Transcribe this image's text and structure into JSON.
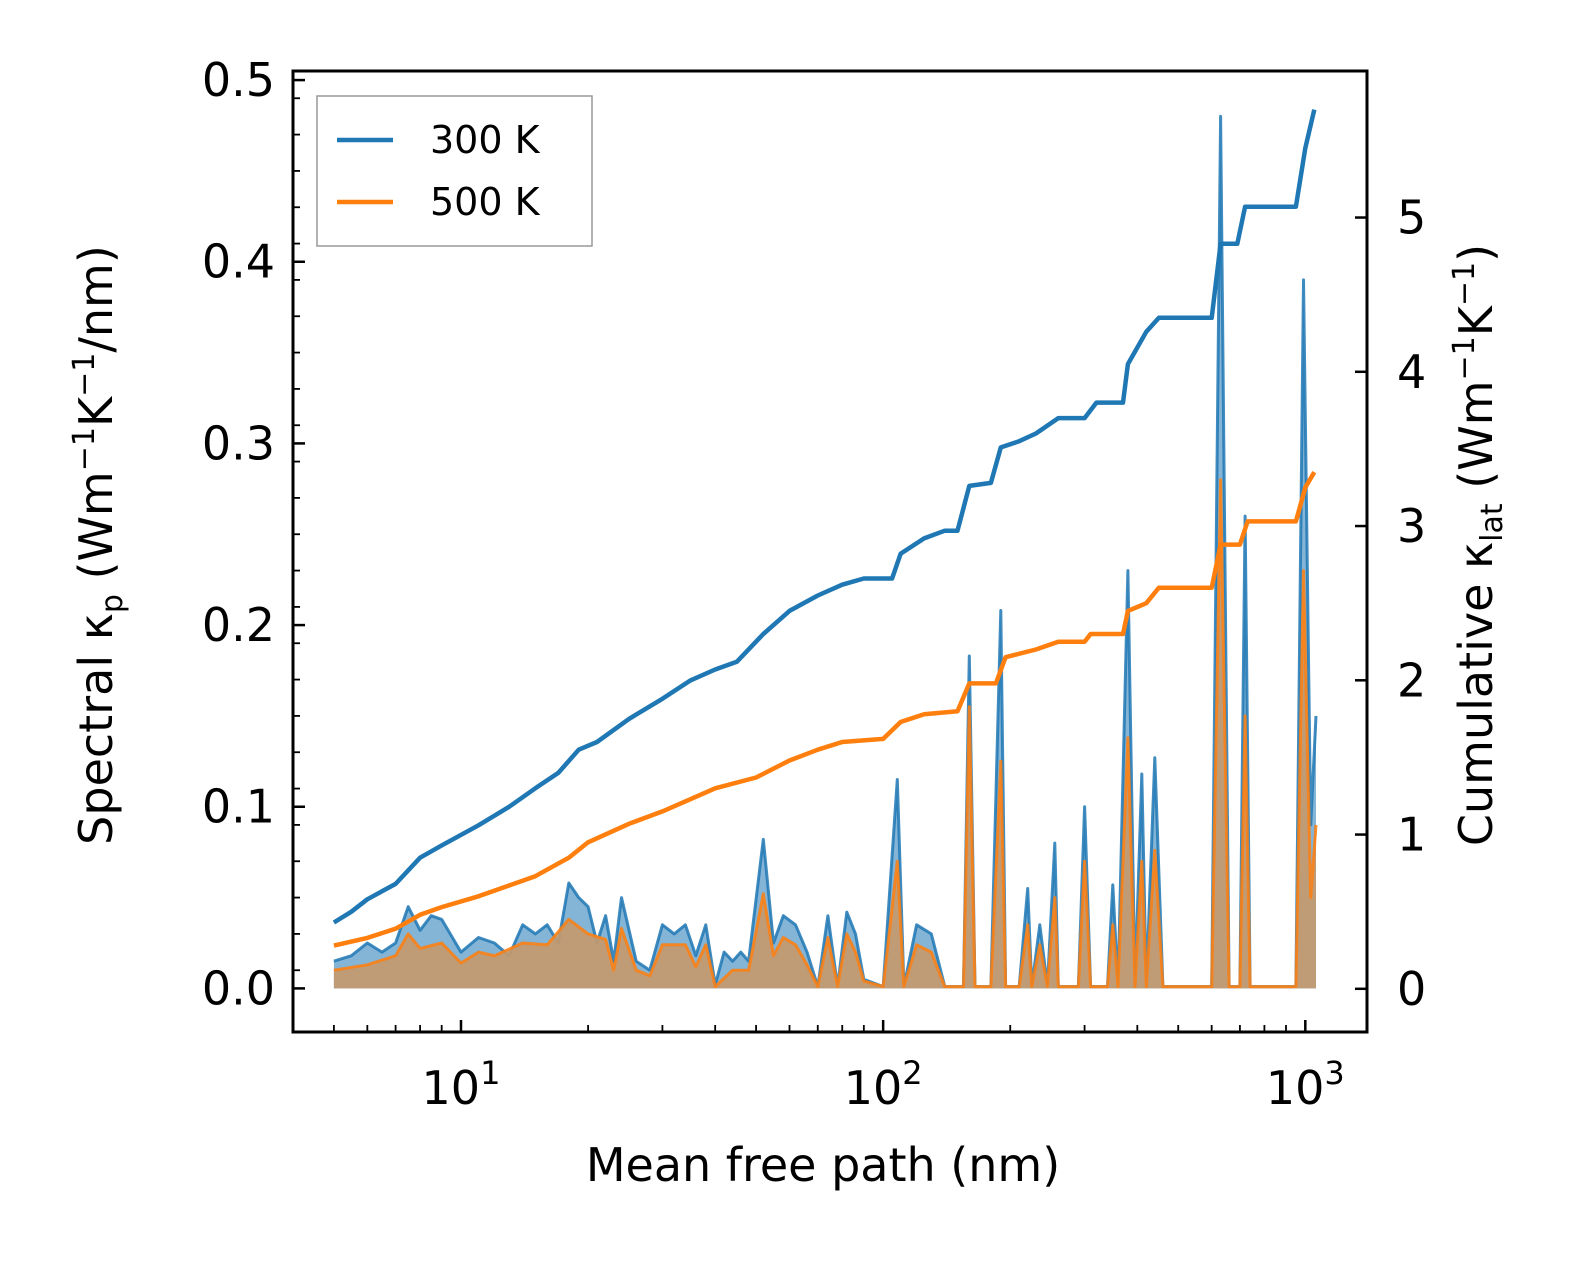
{
  "chart_data": {
    "type": "line",
    "xlabel": "Mean free path (nm)",
    "xscale": "log",
    "xlim": [
      4.0,
      1400
    ],
    "ylabel_left": "Spectral κp (Wm⁻¹K⁻¹/nm)",
    "ylabel_left_parts": {
      "pre": "Spectral κ",
      "sub": "p",
      "post": " (Wm",
      "sup1": "−1",
      "mid": "K",
      "sup2": "−1",
      "end": "/nm)"
    },
    "ylim_left": [
      -0.024,
      0.505
    ],
    "ylabel_right": "Cumulative κlat (Wm⁻¹K⁻¹)",
    "ylabel_right_parts": {
      "pre": "Cumulative κ",
      "sub": "lat",
      "post": " (Wm",
      "sup1": "−1",
      "mid": "K",
      "sup2": "−1",
      "end": ")"
    },
    "ylim_right": [
      -0.28,
      5.95
    ],
    "x_ticks": [
      {
        "value": 10,
        "base": "10",
        "exp": "1"
      },
      {
        "value": 100,
        "base": "10",
        "exp": "2"
      },
      {
        "value": 1000,
        "base": "10",
        "exp": "3"
      }
    ],
    "y_left_ticks": [
      {
        "value": 0.0,
        "label": "0.0"
      },
      {
        "value": 0.1,
        "label": "0.1"
      },
      {
        "value": 0.2,
        "label": "0.2"
      },
      {
        "value": 0.3,
        "label": "0.3"
      },
      {
        "value": 0.4,
        "label": "0.4"
      },
      {
        "value": 0.5,
        "label": "0.5"
      }
    ],
    "y_right_ticks": [
      {
        "value": 0,
        "label": "0"
      },
      {
        "value": 1,
        "label": "1"
      },
      {
        "value": 2,
        "label": "2"
      },
      {
        "value": 3,
        "label": "3"
      },
      {
        "value": 4,
        "label": "4"
      },
      {
        "value": 5,
        "label": "5"
      }
    ],
    "legend": {
      "position": "top-left",
      "entries": [
        {
          "label": "300 K",
          "series": "300K"
        },
        {
          "label": "500 K",
          "series": "500K"
        }
      ]
    },
    "colors": {
      "300K": "#1f77b4",
      "500K": "#ff7f0e",
      "overlap_fill": "#c4996e"
    },
    "cumulative": [
      {
        "name": "300K",
        "axis": "right",
        "points": [
          [
            5,
            0.43
          ],
          [
            5.5,
            0.5
          ],
          [
            6,
            0.58
          ],
          [
            7,
            0.68
          ],
          [
            8,
            0.85
          ],
          [
            9,
            0.93
          ],
          [
            11,
            1.06
          ],
          [
            13,
            1.18
          ],
          [
            15,
            1.3
          ],
          [
            17,
            1.4
          ],
          [
            19,
            1.55
          ],
          [
            21,
            1.6
          ],
          [
            25,
            1.75
          ],
          [
            30,
            1.88
          ],
          [
            35,
            2.0
          ],
          [
            40,
            2.07
          ],
          [
            45,
            2.12
          ],
          [
            52,
            2.3
          ],
          [
            60,
            2.45
          ],
          [
            70,
            2.55
          ],
          [
            80,
            2.62
          ],
          [
            90,
            2.66
          ],
          [
            105,
            2.66
          ],
          [
            110,
            2.82
          ],
          [
            125,
            2.92
          ],
          [
            140,
            2.97
          ],
          [
            150,
            2.97
          ],
          [
            160,
            3.26
          ],
          [
            180,
            3.28
          ],
          [
            190,
            3.51
          ],
          [
            210,
            3.55
          ],
          [
            230,
            3.6
          ],
          [
            260,
            3.7
          ],
          [
            300,
            3.7
          ],
          [
            320,
            3.8
          ],
          [
            370,
            3.8
          ],
          [
            380,
            4.05
          ],
          [
            420,
            4.26
          ],
          [
            450,
            4.35
          ],
          [
            600,
            4.35
          ],
          [
            630,
            4.83
          ],
          [
            690,
            4.83
          ],
          [
            720,
            5.07
          ],
          [
            950,
            5.07
          ],
          [
            1000,
            5.45
          ],
          [
            1050,
            5.7
          ]
        ]
      },
      {
        "name": "500K",
        "axis": "right",
        "points": [
          [
            5,
            0.28
          ],
          [
            6,
            0.33
          ],
          [
            7,
            0.39
          ],
          [
            8,
            0.48
          ],
          [
            9,
            0.53
          ],
          [
            11,
            0.6
          ],
          [
            13,
            0.67
          ],
          [
            15,
            0.73
          ],
          [
            18,
            0.85
          ],
          [
            20,
            0.95
          ],
          [
            25,
            1.07
          ],
          [
            30,
            1.15
          ],
          [
            35,
            1.23
          ],
          [
            40,
            1.3
          ],
          [
            50,
            1.37
          ],
          [
            60,
            1.48
          ],
          [
            70,
            1.55
          ],
          [
            80,
            1.6
          ],
          [
            100,
            1.62
          ],
          [
            110,
            1.73
          ],
          [
            125,
            1.78
          ],
          [
            150,
            1.8
          ],
          [
            160,
            1.98
          ],
          [
            185,
            1.98
          ],
          [
            195,
            2.15
          ],
          [
            230,
            2.2
          ],
          [
            260,
            2.25
          ],
          [
            300,
            2.25
          ],
          [
            310,
            2.3
          ],
          [
            370,
            2.3
          ],
          [
            380,
            2.45
          ],
          [
            420,
            2.5
          ],
          [
            450,
            2.6
          ],
          [
            600,
            2.6
          ],
          [
            630,
            2.88
          ],
          [
            700,
            2.88
          ],
          [
            730,
            3.03
          ],
          [
            950,
            3.03
          ],
          [
            1000,
            3.25
          ],
          [
            1050,
            3.35
          ]
        ]
      }
    ],
    "spectral": [
      {
        "name": "300K",
        "axis": "left",
        "points": [
          [
            5,
            0.015
          ],
          [
            5.5,
            0.018
          ],
          [
            6,
            0.025
          ],
          [
            6.5,
            0.02
          ],
          [
            7,
            0.025
          ],
          [
            7.5,
            0.045
          ],
          [
            8,
            0.032
          ],
          [
            8.5,
            0.04
          ],
          [
            9,
            0.038
          ],
          [
            10,
            0.02
          ],
          [
            11,
            0.028
          ],
          [
            12,
            0.025
          ],
          [
            13,
            0.018
          ],
          [
            14,
            0.035
          ],
          [
            15,
            0.03
          ],
          [
            16,
            0.035
          ],
          [
            17,
            0.025
          ],
          [
            18,
            0.058
          ],
          [
            19,
            0.05
          ],
          [
            20,
            0.045
          ],
          [
            21,
            0.025
          ],
          [
            22,
            0.04
          ],
          [
            23,
            0.015
          ],
          [
            24,
            0.05
          ],
          [
            26,
            0.015
          ],
          [
            28,
            0.01
          ],
          [
            30,
            0.035
          ],
          [
            32,
            0.03
          ],
          [
            34,
            0.035
          ],
          [
            36,
            0.018
          ],
          [
            38,
            0.035
          ],
          [
            40,
            0.002
          ],
          [
            42,
            0.02
          ],
          [
            44,
            0.015
          ],
          [
            46,
            0.02
          ],
          [
            48,
            0.015
          ],
          [
            52,
            0.082
          ],
          [
            55,
            0.025
          ],
          [
            58,
            0.04
          ],
          [
            62,
            0.035
          ],
          [
            66,
            0.02
          ],
          [
            70,
            0.001
          ],
          [
            74,
            0.04
          ],
          [
            78,
            0.001
          ],
          [
            82,
            0.042
          ],
          [
            86,
            0.03
          ],
          [
            90,
            0.005
          ],
          [
            100,
            0.001
          ],
          [
            108,
            0.115
          ],
          [
            112,
            0.001
          ],
          [
            120,
            0.035
          ],
          [
            130,
            0.03
          ],
          [
            140,
            0.001
          ],
          [
            155,
            0.001
          ],
          [
            160,
            0.183
          ],
          [
            165,
            0.001
          ],
          [
            180,
            0.001
          ],
          [
            190,
            0.208
          ],
          [
            195,
            0.001
          ],
          [
            210,
            0.001
          ],
          [
            220,
            0.055
          ],
          [
            225,
            0.001
          ],
          [
            235,
            0.035
          ],
          [
            245,
            0.001
          ],
          [
            255,
            0.08
          ],
          [
            260,
            0.001
          ],
          [
            290,
            0.001
          ],
          [
            300,
            0.1
          ],
          [
            310,
            0.001
          ],
          [
            340,
            0.001
          ],
          [
            350,
            0.057
          ],
          [
            360,
            0.001
          ],
          [
            380,
            0.23
          ],
          [
            395,
            0.001
          ],
          [
            410,
            0.118
          ],
          [
            420,
            0.001
          ],
          [
            440,
            0.127
          ],
          [
            460,
            0.001
          ],
          [
            600,
            0.001
          ],
          [
            630,
            0.48
          ],
          [
            660,
            0.001
          ],
          [
            700,
            0.001
          ],
          [
            720,
            0.26
          ],
          [
            740,
            0.001
          ],
          [
            950,
            0.001
          ],
          [
            990,
            0.39
          ],
          [
            1030,
            0.09
          ],
          [
            1060,
            0.15
          ]
        ]
      },
      {
        "name": "500K",
        "axis": "left",
        "points": [
          [
            5,
            0.01
          ],
          [
            6,
            0.013
          ],
          [
            7,
            0.018
          ],
          [
            7.5,
            0.03
          ],
          [
            8,
            0.022
          ],
          [
            9,
            0.025
          ],
          [
            10,
            0.014
          ],
          [
            11,
            0.02
          ],
          [
            12,
            0.018
          ],
          [
            14,
            0.025
          ],
          [
            16,
            0.024
          ],
          [
            18,
            0.038
          ],
          [
            20,
            0.03
          ],
          [
            22,
            0.027
          ],
          [
            23,
            0.01
          ],
          [
            24,
            0.033
          ],
          [
            26,
            0.01
          ],
          [
            28,
            0.007
          ],
          [
            30,
            0.024
          ],
          [
            34,
            0.024
          ],
          [
            36,
            0.012
          ],
          [
            38,
            0.024
          ],
          [
            40,
            0.001
          ],
          [
            44,
            0.01
          ],
          [
            48,
            0.01
          ],
          [
            52,
            0.052
          ],
          [
            55,
            0.018
          ],
          [
            58,
            0.028
          ],
          [
            62,
            0.024
          ],
          [
            66,
            0.013
          ],
          [
            70,
            0.001
          ],
          [
            74,
            0.028
          ],
          [
            78,
            0.001
          ],
          [
            82,
            0.03
          ],
          [
            86,
            0.02
          ],
          [
            90,
            0.004
          ],
          [
            100,
            0.001
          ],
          [
            108,
            0.07
          ],
          [
            112,
            0.001
          ],
          [
            120,
            0.024
          ],
          [
            130,
            0.02
          ],
          [
            140,
            0.001
          ],
          [
            155,
            0.001
          ],
          [
            160,
            0.155
          ],
          [
            165,
            0.001
          ],
          [
            180,
            0.001
          ],
          [
            190,
            0.125
          ],
          [
            195,
            0.001
          ],
          [
            210,
            0.001
          ],
          [
            220,
            0.035
          ],
          [
            225,
            0.001
          ],
          [
            235,
            0.024
          ],
          [
            245,
            0.001
          ],
          [
            255,
            0.05
          ],
          [
            260,
            0.001
          ],
          [
            290,
            0.001
          ],
          [
            300,
            0.07
          ],
          [
            310,
            0.001
          ],
          [
            340,
            0.001
          ],
          [
            350,
            0.035
          ],
          [
            360,
            0.001
          ],
          [
            380,
            0.138
          ],
          [
            395,
            0.001
          ],
          [
            410,
            0.07
          ],
          [
            420,
            0.001
          ],
          [
            440,
            0.076
          ],
          [
            460,
            0.001
          ],
          [
            600,
            0.001
          ],
          [
            630,
            0.28
          ],
          [
            660,
            0.001
          ],
          [
            700,
            0.001
          ],
          [
            720,
            0.15
          ],
          [
            740,
            0.001
          ],
          [
            950,
            0.001
          ],
          [
            990,
            0.23
          ],
          [
            1030,
            0.05
          ],
          [
            1060,
            0.09
          ]
        ]
      }
    ]
  }
}
